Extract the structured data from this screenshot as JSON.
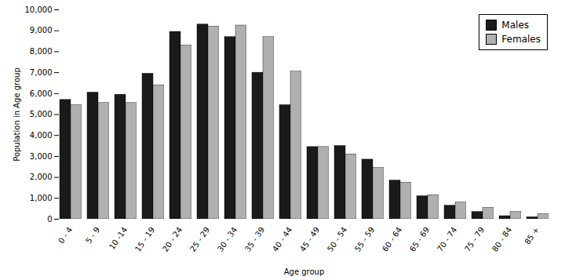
{
  "chart_data": {
    "type": "bar",
    "categories": [
      "0 - 4",
      "5 - 9",
      "10 -14",
      "15 - 19",
      "20 - 24",
      "25 - 29",
      "30 - 34",
      "35 - 39",
      "40 - 44",
      "45 - 49",
      "50 - 54",
      "55 - 59",
      "60 - 64",
      "65 - 69",
      "70 - 74",
      "75 - 79",
      "80 - 84",
      "85 +"
    ],
    "series": [
      {
        "name": "Males",
        "color": "#1a1a1a",
        "values": [
          5700,
          6050,
          5950,
          6950,
          8950,
          9300,
          8700,
          7000,
          5450,
          3450,
          3500,
          2850,
          1850,
          1100,
          650,
          350,
          150,
          100
        ]
      },
      {
        "name": "Females",
        "color": "#b0b0b0",
        "values": [
          5450,
          5550,
          5550,
          6400,
          8300,
          9200,
          9250,
          8700,
          7050,
          3450,
          3100,
          2450,
          1750,
          1150,
          800,
          550,
          350,
          250
        ]
      }
    ],
    "xlabel": "Age group",
    "ylabel": "Population in Age group",
    "ylim": [
      0,
      10000
    ],
    "yticks": [
      0,
      {
        "value": 1000,
        "label": "1,000"
      },
      {
        "value": 2000,
        "label": "2,000"
      },
      {
        "value": 3000,
        "label": "3,000"
      },
      {
        "value": 4000,
        "label": "4,000"
      },
      {
        "value": 5000,
        "label": "5,000"
      },
      {
        "value": 6000,
        "label": "6,000"
      },
      {
        "value": 7000,
        "label": "7,000"
      },
      {
        "value": 8000,
        "label": "8,000"
      },
      {
        "value": 9000,
        "label": "9,000"
      },
      {
        "value": 10000,
        "label": "10,000"
      }
    ],
    "legend": "upper right",
    "grid": false
  }
}
